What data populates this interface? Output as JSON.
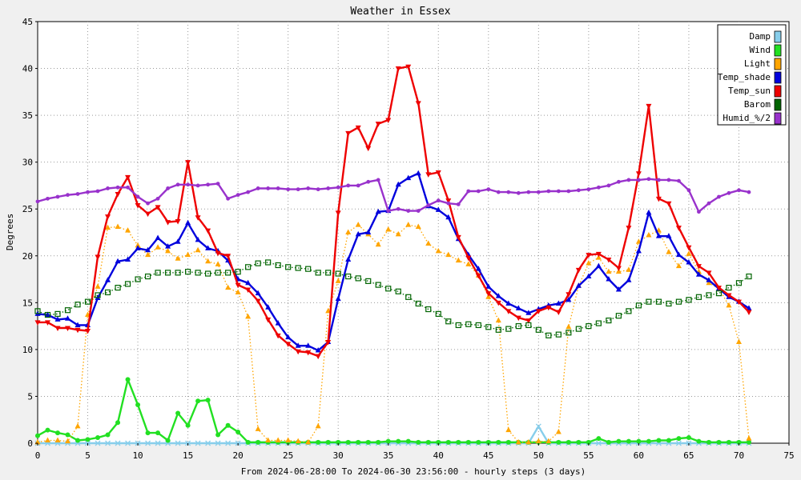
{
  "chart_data": {
    "type": "line",
    "title": "Weather in Essex",
    "xlabel": "From 2024-06-28:00 To 2024-06-30 23:56:00 - hourly steps (3 days)",
    "ylabel": "Degrees",
    "xlim": [
      0,
      75
    ],
    "ylim": [
      0,
      45
    ],
    "x_ticks": [
      0,
      5,
      10,
      15,
      20,
      25,
      30,
      35,
      40,
      45,
      50,
      55,
      60,
      65,
      70,
      75
    ],
    "y_ticks": [
      0,
      5,
      10,
      15,
      20,
      25,
      30,
      35,
      40,
      45
    ],
    "grid": true,
    "legend_position": "top-right",
    "x": [
      0,
      1,
      2,
      3,
      4,
      5,
      6,
      7,
      8,
      9,
      10,
      11,
      12,
      13,
      14,
      15,
      16,
      17,
      18,
      19,
      20,
      21,
      22,
      23,
      24,
      25,
      26,
      27,
      28,
      29,
      30,
      31,
      32,
      33,
      34,
      35,
      36,
      37,
      38,
      39,
      40,
      41,
      42,
      43,
      44,
      45,
      46,
      47,
      48,
      49,
      50,
      51,
      52,
      53,
      54,
      55,
      56,
      57,
      58,
      59,
      60,
      61,
      62,
      63,
      64,
      65,
      66,
      67,
      68,
      69,
      70,
      71
    ],
    "series": [
      {
        "name": "Damp",
        "color": "#87ceeb",
        "marker": "x",
        "values": [
          0,
          0,
          0,
          0,
          0,
          0,
          0,
          0,
          0,
          0,
          0,
          0,
          0,
          0,
          0,
          0,
          0,
          0,
          0,
          0,
          0,
          0,
          0,
          0,
          0,
          0,
          0,
          0,
          0,
          0,
          0,
          0,
          0,
          0,
          0,
          0,
          0,
          0,
          0,
          0,
          0,
          0,
          0,
          0,
          0,
          0,
          0,
          0,
          0,
          0,
          1.8,
          0,
          0,
          0,
          0,
          0,
          0,
          0,
          0,
          0,
          0,
          0,
          0,
          0,
          0,
          0,
          0,
          0,
          0,
          0,
          0,
          0
        ]
      },
      {
        "name": "Wind",
        "color": "#22e022",
        "marker": "circle",
        "values": [
          0.8,
          1.4,
          1.1,
          0.9,
          0.3,
          0.4,
          0.6,
          0.9,
          2.2,
          6.8,
          4.1,
          1.1,
          1.1,
          0.3,
          3.2,
          1.9,
          4.5,
          4.6,
          0.9,
          1.9,
          1.2,
          0.1,
          0.1,
          0.1,
          0.1,
          0.1,
          0.1,
          0.1,
          0.1,
          0.1,
          0.1,
          0.1,
          0.1,
          0.1,
          0.1,
          0.2,
          0.2,
          0.2,
          0.1,
          0.1,
          0.1,
          0.1,
          0.1,
          0.1,
          0.1,
          0.1,
          0.1,
          0.1,
          0.1,
          0.1,
          0.1,
          0.1,
          0.1,
          0.1,
          0.1,
          0.1,
          0.5,
          0.1,
          0.2,
          0.2,
          0.2,
          0.2,
          0.3,
          0.3,
          0.5,
          0.6,
          0.2,
          0.1,
          0.1,
          0.1,
          0.1,
          0.1
        ]
      },
      {
        "name": "Light",
        "color": "#ffa500",
        "marker": "triangle-up",
        "line": "dotted",
        "values": [
          0.1,
          0.3,
          0.3,
          0.2,
          1.8,
          13.7,
          16.7,
          23,
          23.1,
          22.7,
          21.1,
          20.1,
          20.9,
          20.5,
          19.7,
          20.1,
          20.6,
          19.4,
          19.1,
          16.6,
          16.1,
          13.5,
          1.5,
          0.3,
          0.3,
          0.3,
          0.2,
          0.1,
          1.8,
          14.1,
          17.3,
          22.5,
          23.3,
          22.3,
          21.2,
          22.8,
          22.3,
          23.3,
          23.1,
          21.3,
          20.5,
          20.1,
          19.5,
          19.1,
          17.9,
          15.6,
          13.1,
          1.4,
          0.1,
          0.1,
          0.2,
          0.2,
          1.2,
          12.4,
          16.8,
          19.2,
          19.8,
          18.3,
          18.3,
          18.5,
          21.5,
          22.2,
          22.7,
          20.4,
          18.9,
          20.2,
          18.3,
          17.1,
          16.5,
          14.7,
          10.8,
          0.5
        ]
      },
      {
        "name": "Temp_shade",
        "color": "#0000dd",
        "marker": "triangle-up",
        "values": [
          13.8,
          13.7,
          13.2,
          13.3,
          12.6,
          12.6,
          15.5,
          17.4,
          19.4,
          19.6,
          20.8,
          20.6,
          21.9,
          21,
          21.5,
          23.5,
          21.7,
          20.8,
          20.5,
          19.5,
          17.5,
          17.1,
          16,
          14.5,
          12.8,
          11.3,
          10.4,
          10.4,
          9.9,
          10.8,
          15.4,
          19.6,
          22.3,
          22.5,
          24.7,
          24.8,
          27.6,
          28.3,
          28.8,
          25.3,
          24.9,
          24.1,
          21.8,
          20.1,
          18.6,
          16.7,
          15.7,
          14.9,
          14.4,
          13.9,
          14.3,
          14.7,
          14.9,
          15.3,
          16.8,
          17.8,
          18.9,
          17.5,
          16.4,
          17.4,
          20.5,
          24.6,
          22.1,
          22.1,
          20.1,
          19.3,
          18,
          17.4,
          16.5,
          15.6,
          15.1,
          14.4
        ]
      },
      {
        "name": "Temp_sun",
        "color": "#ee0000",
        "marker": "triangle-down",
        "values": [
          12.9,
          12.9,
          12.3,
          12.3,
          12.1,
          12,
          19.9,
          24.2,
          26.6,
          28.4,
          25.4,
          24.5,
          25.2,
          23.6,
          23.7,
          30,
          24.1,
          22.7,
          20.3,
          20,
          16.9,
          16.4,
          15.2,
          13.2,
          11.5,
          10.6,
          9.8,
          9.7,
          9.3,
          10.8,
          24.6,
          33.1,
          33.7,
          31.5,
          34.1,
          34.5,
          40,
          40.2,
          36.3,
          28.7,
          28.9,
          25.9,
          22,
          19.8,
          17.9,
          16,
          15,
          14.1,
          13.4,
          13.1,
          14.1,
          14.5,
          14,
          15.9,
          18.5,
          20.1,
          20.2,
          19.6,
          18.7,
          23,
          28.8,
          36,
          26.1,
          25.6,
          23,
          20.9,
          18.9,
          18.2,
          16.6,
          15.8,
          15.1,
          14
        ]
      },
      {
        "name": "Barom",
        "color": "#006400",
        "marker": "square-open",
        "line": "dotted",
        "values": [
          14.1,
          13.7,
          13.8,
          14.2,
          14.8,
          15.1,
          15.8,
          16.1,
          16.6,
          17,
          17.5,
          17.8,
          18.2,
          18.2,
          18.2,
          18.3,
          18.2,
          18.1,
          18.2,
          18.2,
          18.3,
          18.8,
          19.2,
          19.3,
          19,
          18.8,
          18.7,
          18.6,
          18.2,
          18.2,
          18.1,
          17.8,
          17.6,
          17.3,
          16.9,
          16.5,
          16.2,
          15.6,
          14.9,
          14.3,
          13.8,
          13,
          12.6,
          12.7,
          12.6,
          12.4,
          12.1,
          12.2,
          12.5,
          12.6,
          12.1,
          11.5,
          11.6,
          11.8,
          12.2,
          12.5,
          12.8,
          13.1,
          13.6,
          14.1,
          14.7,
          15.1,
          15.1,
          14.9,
          15.1,
          15.3,
          15.6,
          15.8,
          16,
          16.6,
          17.1,
          17.8
        ]
      },
      {
        "name": "Humid_%/2",
        "color": "#9932cc",
        "marker": "star",
        "values": [
          25.8,
          26.1,
          26.3,
          26.5,
          26.6,
          26.8,
          26.9,
          27.2,
          27.3,
          27.3,
          26.3,
          25.6,
          26.1,
          27.2,
          27.6,
          27.6,
          27.5,
          27.6,
          27.7,
          26.1,
          26.5,
          26.8,
          27.2,
          27.2,
          27.2,
          27.1,
          27.1,
          27.2,
          27.1,
          27.2,
          27.3,
          27.5,
          27.5,
          27.9,
          28.1,
          24.8,
          25,
          24.8,
          24.8,
          25.4,
          25.9,
          25.6,
          25.5,
          26.9,
          26.9,
          27.1,
          26.8,
          26.8,
          26.7,
          26.8,
          26.8,
          26.9,
          26.9,
          26.9,
          27,
          27.1,
          27.3,
          27.5,
          27.9,
          28.1,
          28.1,
          28.2,
          28.1,
          28.1,
          28,
          27,
          24.7,
          25.6,
          26.3,
          26.7,
          27,
          26.8
        ]
      }
    ],
    "background": "#f0f0f0",
    "plot_background": "#ffffff"
  }
}
